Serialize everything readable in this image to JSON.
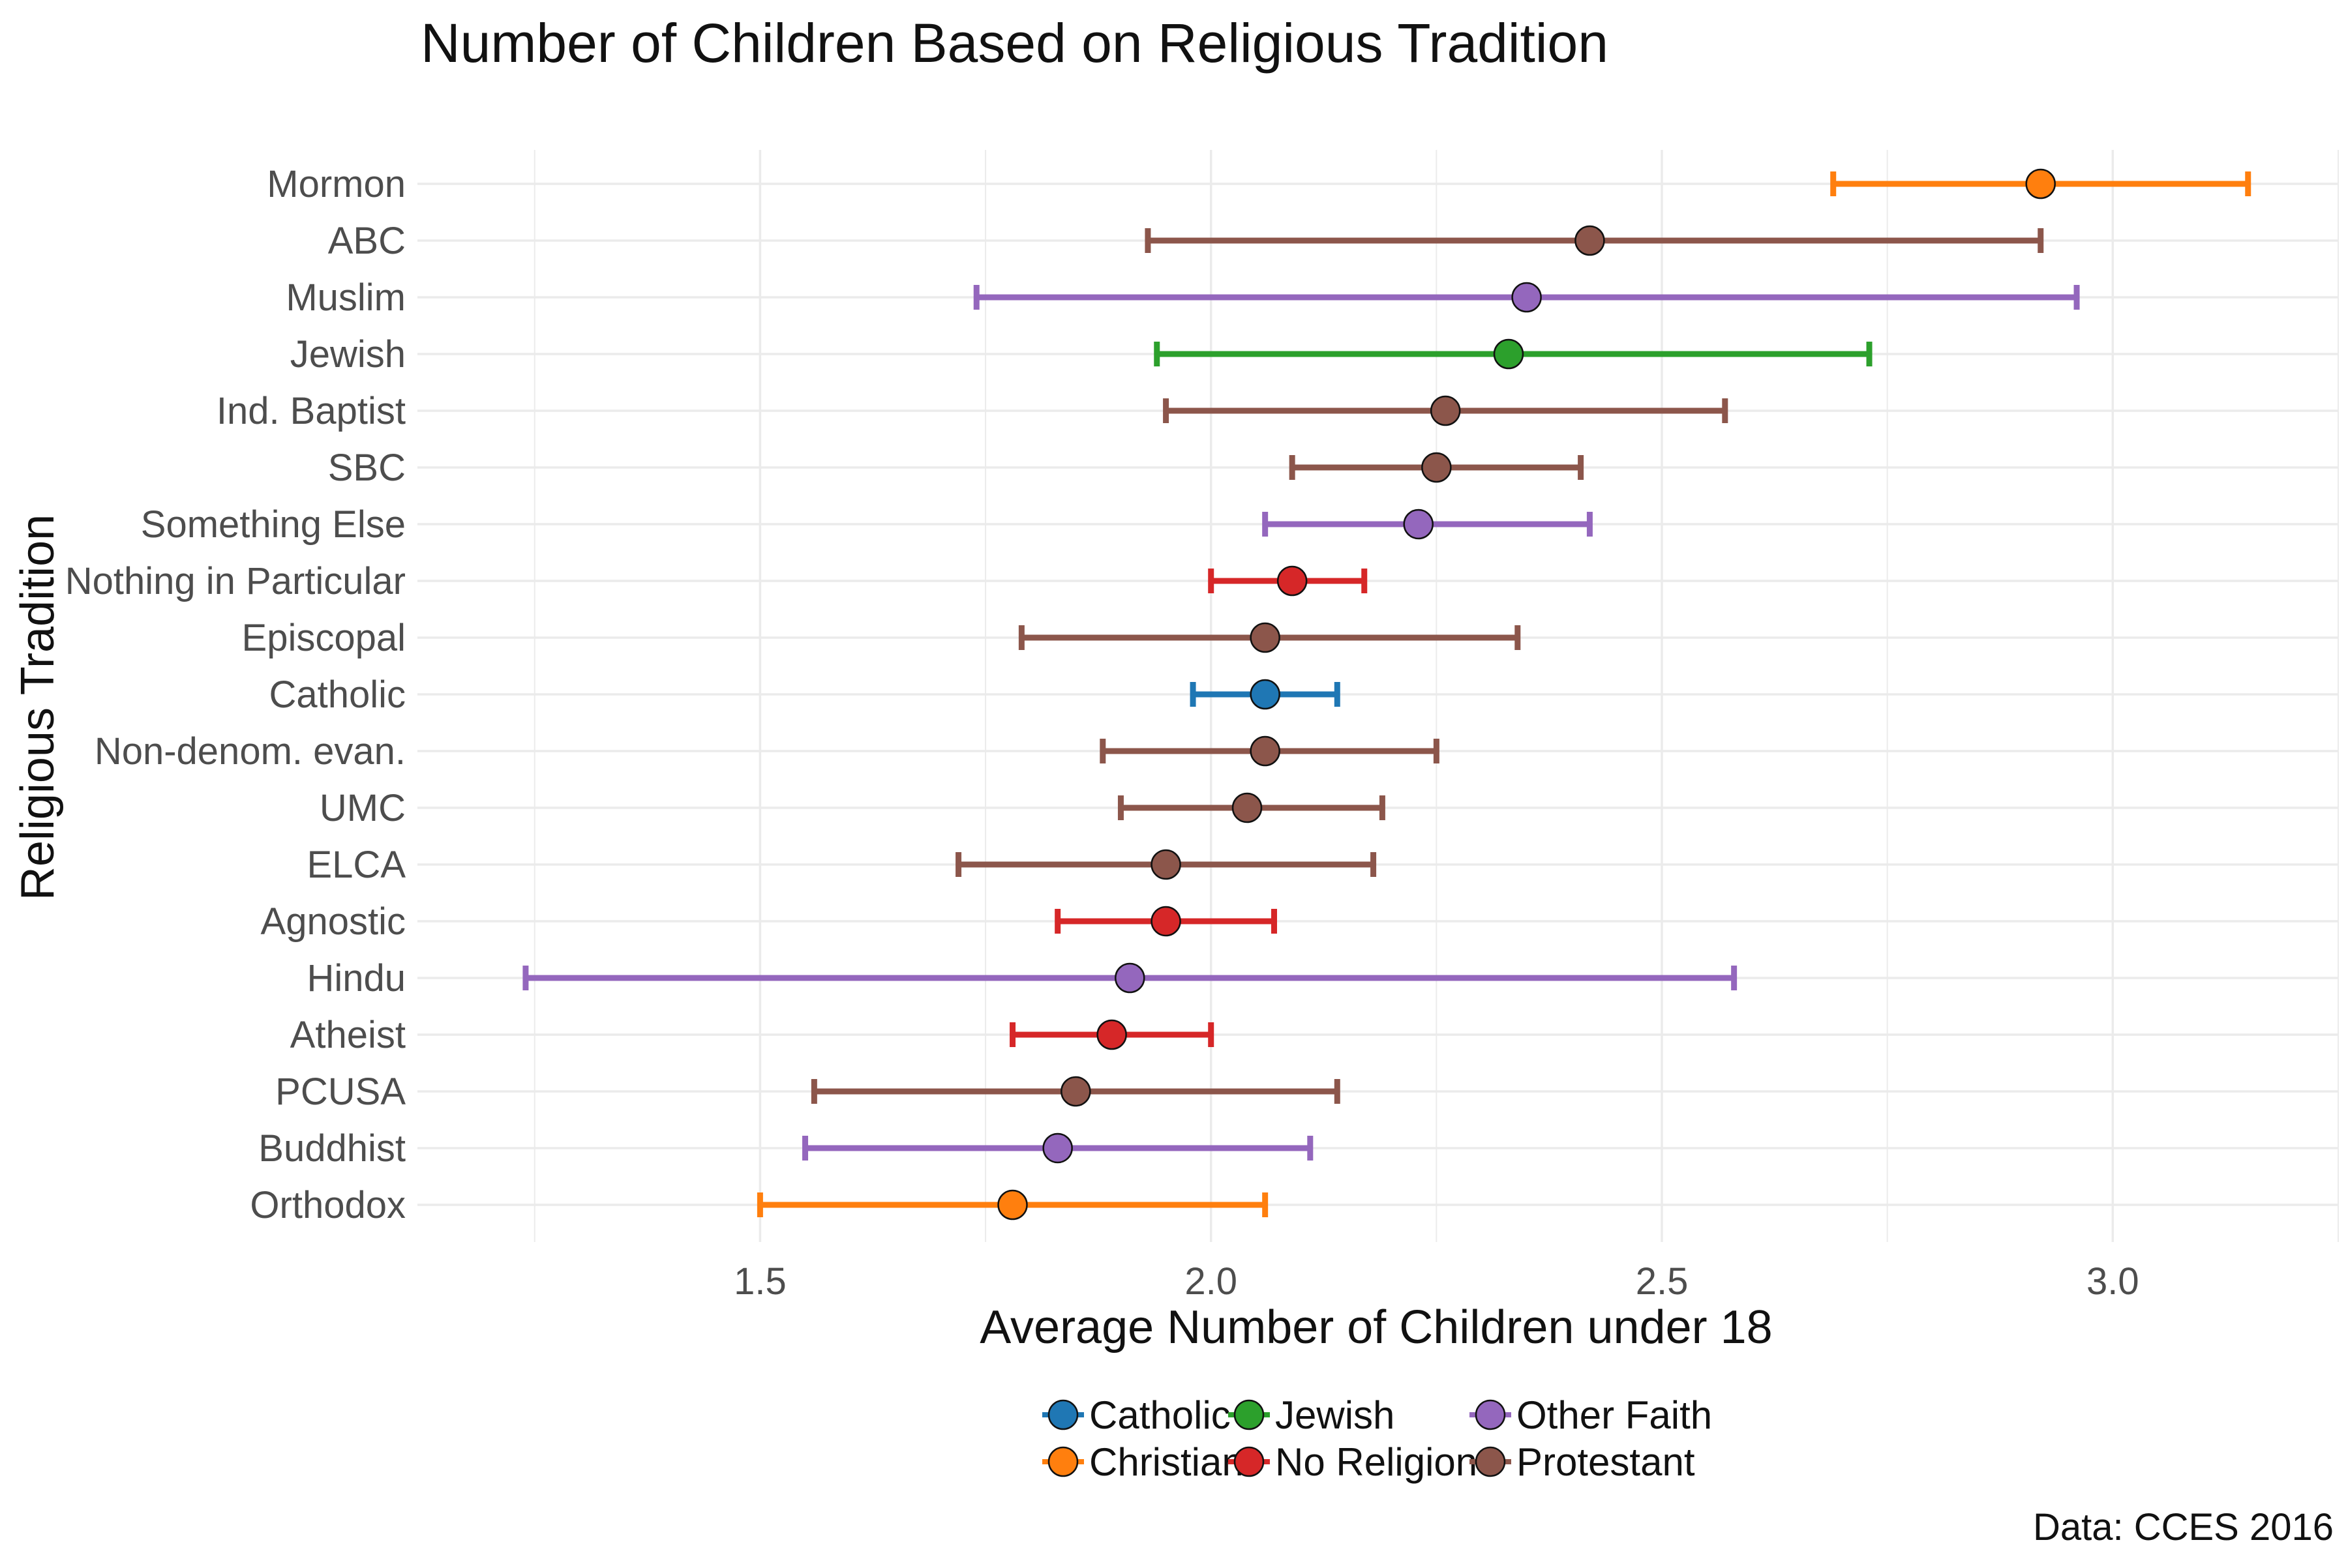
{
  "chart_data": {
    "type": "errorbar",
    "title": "Number of Children Based on Religious Tradition",
    "xlabel": "Average Number of Children under 18",
    "ylabel": "Religious Tradition",
    "caption": "Data: CCES 2016",
    "xlim": [
      1.12,
      3.25
    ],
    "xticks": [
      1.5,
      2.0,
      2.5,
      3.0
    ],
    "xtick_labels": [
      "1.5",
      "2.0",
      "2.5",
      "3.0"
    ],
    "grid": true,
    "legend_position": "bottom",
    "legend": [
      {
        "name": "Catholic",
        "color": "#1f77b4"
      },
      {
        "name": "Christian",
        "color": "#ff7f0e"
      },
      {
        "name": "Jewish",
        "color": "#2ca02c"
      },
      {
        "name": "No Religion",
        "color": "#d62728"
      },
      {
        "name": "Other Faith",
        "color": "#9467bd"
      },
      {
        "name": "Protestant",
        "color": "#8c564b"
      }
    ],
    "points": [
      {
        "label": "Mormon",
        "group": "Christian",
        "mean": 2.92,
        "low": 2.69,
        "high": 3.15
      },
      {
        "label": "ABC",
        "group": "Protestant",
        "mean": 2.42,
        "low": 1.93,
        "high": 2.92
      },
      {
        "label": "Muslim",
        "group": "Other Faith",
        "mean": 2.35,
        "low": 1.74,
        "high": 2.96
      },
      {
        "label": "Jewish",
        "group": "Jewish",
        "mean": 2.33,
        "low": 1.94,
        "high": 2.73
      },
      {
        "label": "Ind. Baptist",
        "group": "Protestant",
        "mean": 2.26,
        "low": 1.95,
        "high": 2.57
      },
      {
        "label": "SBC",
        "group": "Protestant",
        "mean": 2.25,
        "low": 2.09,
        "high": 2.41
      },
      {
        "label": "Something Else",
        "group": "Other Faith",
        "mean": 2.23,
        "low": 2.06,
        "high": 2.42
      },
      {
        "label": "Nothing in Particular",
        "group": "No Religion",
        "mean": 2.09,
        "low": 2.0,
        "high": 2.17
      },
      {
        "label": "Episcopal",
        "group": "Protestant",
        "mean": 2.06,
        "low": 1.79,
        "high": 2.34
      },
      {
        "label": "Catholic",
        "group": "Catholic",
        "mean": 2.06,
        "low": 1.98,
        "high": 2.14
      },
      {
        "label": "Non-denom. evan.",
        "group": "Protestant",
        "mean": 2.06,
        "low": 1.88,
        "high": 2.25
      },
      {
        "label": "UMC",
        "group": "Protestant",
        "mean": 2.04,
        "low": 1.9,
        "high": 2.19
      },
      {
        "label": "ELCA",
        "group": "Protestant",
        "mean": 1.95,
        "low": 1.72,
        "high": 2.18
      },
      {
        "label": "Agnostic",
        "group": "No Religion",
        "mean": 1.95,
        "low": 1.83,
        "high": 2.07
      },
      {
        "label": "Hindu",
        "group": "Other Faith",
        "mean": 1.91,
        "low": 1.24,
        "high": 2.58
      },
      {
        "label": "Atheist",
        "group": "No Religion",
        "mean": 1.89,
        "low": 1.78,
        "high": 2.0
      },
      {
        "label": "PCUSA",
        "group": "Protestant",
        "mean": 1.85,
        "low": 1.56,
        "high": 2.14
      },
      {
        "label": "Buddhist",
        "group": "Other Faith",
        "mean": 1.83,
        "low": 1.55,
        "high": 2.11
      },
      {
        "label": "Orthodox",
        "group": "Christian",
        "mean": 1.78,
        "low": 1.5,
        "high": 2.06
      }
    ]
  }
}
